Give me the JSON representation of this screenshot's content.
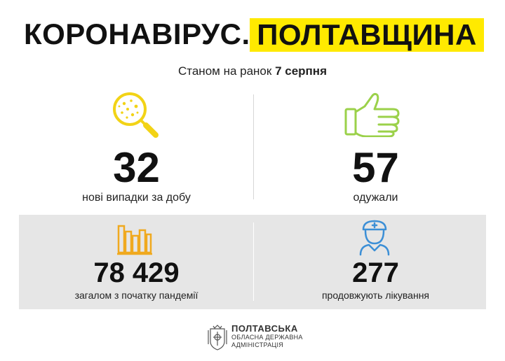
{
  "header": {
    "title_main": "КОРОНАВІРУС.",
    "title_highlight": "ПОЛТАВЩИНА"
  },
  "subtitle": {
    "prefix": "Станом на ранок",
    "date": "7 серпня"
  },
  "stats": {
    "new_cases": {
      "value": "32",
      "label": "нові випадки за добу",
      "icon": "virus-magnifier-icon"
    },
    "recovered": {
      "value": "57",
      "label": "одужали",
      "icon": "thumbs-up-icon"
    },
    "total": {
      "value": "78 429",
      "label": "загалом з початку пандемії",
      "icon": "bar-chart-icon"
    },
    "treatment": {
      "value": "277",
      "label": "продовжують лікування",
      "icon": "doctor-icon"
    }
  },
  "footer": {
    "line1": "ПОЛТАВСЬКА",
    "line2": "ОБЛАСНА ДЕРЖАВНА",
    "line3": "АДМІНІСТРАЦІЯ"
  },
  "colors": {
    "highlight": "#ffea00",
    "icon_yellow": "#f2d316",
    "icon_green": "#9bd14a",
    "icon_orange": "#f0a91f",
    "icon_blue": "#3c8fd6",
    "band_grey": "#e6e6e6"
  }
}
